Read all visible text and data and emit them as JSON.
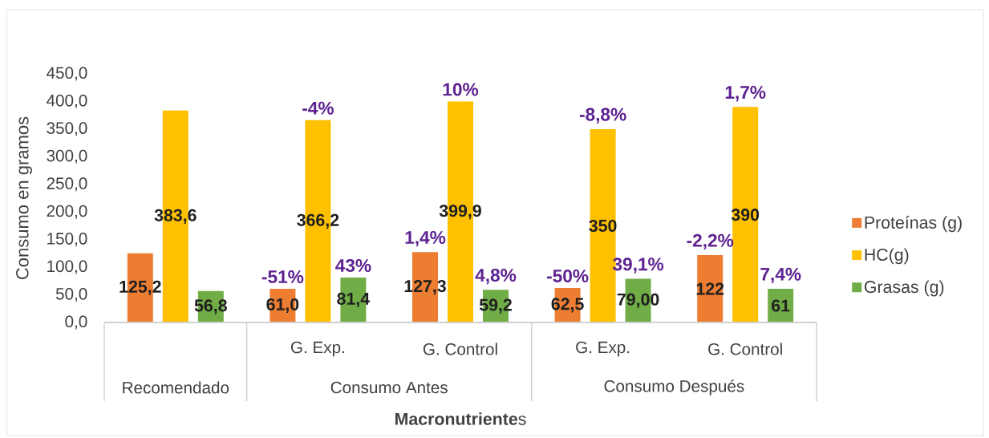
{
  "chart_data": {
    "type": "bar",
    "xlabel": "**Macronutriente**s",
    "ylabel": "Consumo en gramos",
    "categories": [
      null,
      "G. Exp.",
      "G. Control",
      "G. Exp.",
      "G. Control"
    ],
    "series": [
      {
        "name": "Proteínas (g)",
        "color": "#ED7D31",
        "values": [
          125.2,
          61.0,
          127.3,
          62.5,
          122
        ],
        "value_labels": [
          "125,2",
          "61,0",
          "127,3",
          "62,5",
          "122"
        ]
      },
      {
        "name": "HC(g)",
        "color": "#FFC000",
        "values": [
          383.6,
          366.2,
          399.9,
          350,
          390
        ],
        "value_labels": [
          "383,6",
          "366,2",
          "399,9",
          "350",
          "390"
        ]
      },
      {
        "name": "Grasas (g)",
        "color": "#70AD47",
        "values": [
          56.8,
          81.4,
          59.2,
          79.0,
          61
        ],
        "value_labels": [
          "56,8",
          "81,4",
          "59,2",
          "79,00",
          "61"
        ]
      }
    ],
    "ylim": [
      0,
      450
    ],
    "yticks": [
      {
        "value": 0,
        "label": "0,0"
      },
      {
        "value": 50,
        "label": "50,0"
      },
      {
        "value": 100,
        "label": "100,0"
      },
      {
        "value": 150,
        "label": "150,0"
      },
      {
        "value": 200,
        "label": "200,0"
      },
      {
        "value": 250,
        "label": "250,0"
      },
      {
        "value": 300,
        "label": "300,0"
      },
      {
        "value": 350,
        "label": "350,0"
      },
      {
        "value": 400,
        "label": "400,0"
      },
      {
        "value": 450,
        "label": "450,0"
      }
    ],
    "legend": "right",
    "annotations": [
      "Recomendado",
      "Consumo Antes",
      "Consumo Después",
      {
        "text": "-51%",
        "y": 61.0
      },
      {
        "text": "-4%",
        "y": 366.2
      },
      {
        "text": "43%",
        "y": 81.4
      },
      {
        "text": "1,4%",
        "y": 127.3
      },
      {
        "text": "10%",
        "y": 399.9
      },
      {
        "text": "4,8%",
        "y": 59.2
      },
      {
        "text": "-50%",
        "y": 62.5
      },
      {
        "text": "-8,8%",
        "y": 350
      },
      {
        "text": "39,1%",
        "y": 79.0
      },
      {
        "text": "-2,2%",
        "y": 122
      },
      {
        "text": "1,7%",
        "y": 390
      },
      {
        "text": "7,4%",
        "y": 61
      }
    ]
  }
}
